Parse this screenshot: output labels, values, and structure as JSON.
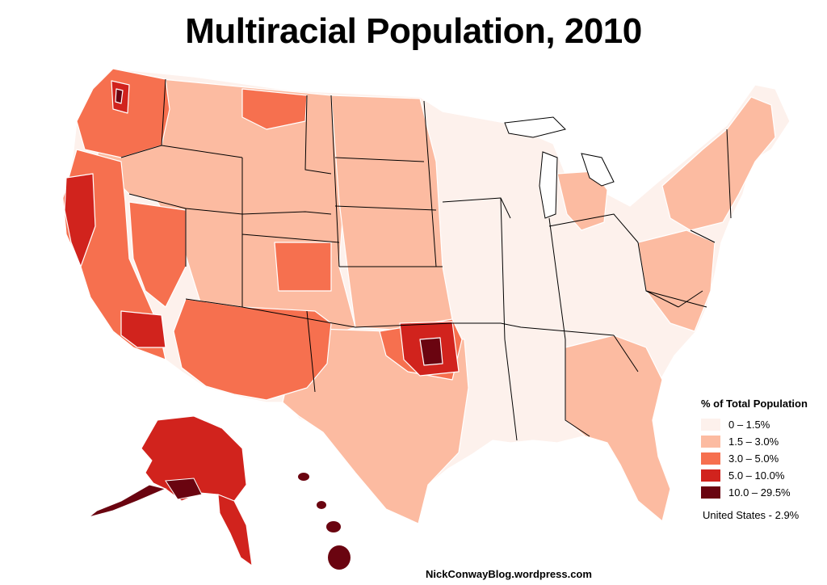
{
  "title": "Multiracial Population, 2010",
  "legend": {
    "title": "% of Total Population",
    "bins": [
      {
        "label": "0 – 1.5%",
        "color": "#fdf1ec"
      },
      {
        "label": "1.5 – 3.0%",
        "color": "#fcbba1"
      },
      {
        "label": "3.0 – 5.0%",
        "color": "#f6704f"
      },
      {
        "label": "5.0 – 10.0%",
        "color": "#d1231d"
      },
      {
        "label": "10.0 – 29.5%",
        "color": "#6a0410"
      }
    ]
  },
  "us_total": "United States - 2.9%",
  "credit": "NickConwayBlog.wordpress.com"
}
